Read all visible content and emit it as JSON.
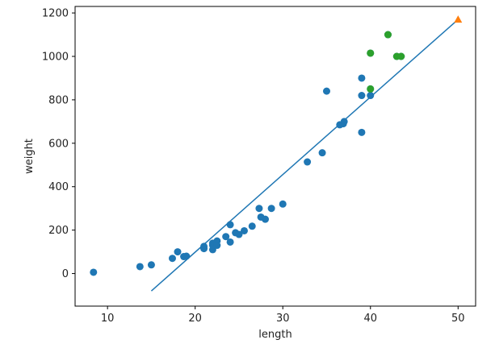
{
  "chart_data": {
    "type": "scatter",
    "xlabel": "length",
    "ylabel": "weight",
    "xlim": [
      6.3,
      52
    ],
    "ylim": [
      -150,
      1230
    ],
    "xticks": [
      10,
      20,
      30,
      40,
      50
    ],
    "yticks": [
      0,
      200,
      400,
      600,
      800,
      1000,
      1200
    ],
    "grid": false,
    "colors": {
      "train": "#1f77b4",
      "neighbors": "#2ca02c",
      "query": "#ff7f0e",
      "fit": "#1f77b4"
    },
    "train_points": [
      [
        8.4,
        5.9
      ],
      [
        13.7,
        32
      ],
      [
        15.0,
        40
      ],
      [
        17.4,
        70
      ],
      [
        18.0,
        100
      ],
      [
        18.7,
        78
      ],
      [
        19.0,
        80
      ],
      [
        21.0,
        125
      ],
      [
        21.0,
        115
      ],
      [
        22.0,
        140
      ],
      [
        22.0,
        110
      ],
      [
        22.0,
        130
      ],
      [
        22.5,
        150
      ],
      [
        22.5,
        130
      ],
      [
        23.5,
        170
      ],
      [
        24.0,
        145
      ],
      [
        24.0,
        225
      ],
      [
        24.6,
        188
      ],
      [
        25.0,
        180
      ],
      [
        25.6,
        197
      ],
      [
        26.5,
        218
      ],
      [
        27.3,
        300
      ],
      [
        27.5,
        260
      ],
      [
        28.0,
        250
      ],
      [
        28.7,
        300
      ],
      [
        30.0,
        320
      ],
      [
        32.8,
        514
      ],
      [
        34.5,
        556
      ],
      [
        35.0,
        840
      ],
      [
        36.5,
        685
      ],
      [
        36.9,
        690
      ],
      [
        37.0,
        700
      ],
      [
        39.0,
        650
      ],
      [
        39.0,
        820
      ],
      [
        39.0,
        900
      ],
      [
        40.0,
        820
      ],
      [
        40.0,
        850
      ],
      [
        40.0,
        1015
      ],
      [
        42.0,
        1100
      ],
      [
        43.0,
        1000
      ],
      [
        43.5,
        1000
      ]
    ],
    "neighbor_points": [
      [
        40.0,
        1015
      ],
      [
        42.0,
        1100
      ],
      [
        43.0,
        1000
      ],
      [
        43.5,
        1000
      ],
      [
        40.0,
        850
      ]
    ],
    "query_point": [
      50,
      1170
    ],
    "fit_line": [
      [
        15,
        -80
      ],
      [
        50,
        1170
      ]
    ]
  }
}
